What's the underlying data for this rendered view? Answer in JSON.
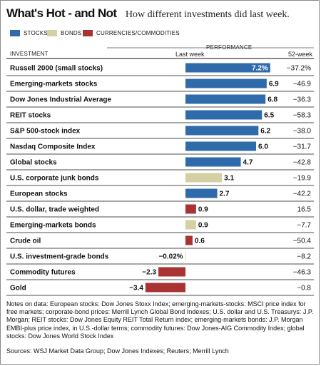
{
  "header": {
    "title": "What's Hot - and Not",
    "subtitle": "How different investments did last week."
  },
  "legend": [
    {
      "key": "stocks",
      "label": "STOCKS",
      "color": "#2f6bab"
    },
    {
      "key": "bonds",
      "label": "BONDS",
      "color": "#d4d0a4"
    },
    {
      "key": "currencies",
      "label": "CURRENCIES/COMMODITIES",
      "color": "#a93233"
    }
  ],
  "table_header": {
    "investment": "INVESTMENT",
    "performance": "PERFORMANCE",
    "last_week": "Last week",
    "week52": "52-week"
  },
  "chart_data": {
    "type": "bar",
    "orientation": "horizontal",
    "series_name": "Last week",
    "categories": [
      "Russell 2000 (small stocks)",
      "Emerging-markets stocks",
      "Dow Jones Industrial Average",
      "REIT stocks",
      "S&P 500-stock index",
      "Nasdaq Composite Index",
      "Global stocks",
      "U.S. corporate junk bonds",
      "European stocks",
      "U.S. dollar, trade weighted",
      "Emerging-markets bonds",
      "Crude oil",
      "U.S. investment-grade bonds",
      "Commodity futures",
      "Gold"
    ],
    "values": [
      7.2,
      6.9,
      6.8,
      6.5,
      6.2,
      6.0,
      4.7,
      3.1,
      2.7,
      0.9,
      0.9,
      0.6,
      -0.02,
      -2.3,
      -3.4
    ],
    "value_labels": [
      "7.2%",
      "6.9",
      "6.8",
      "6.5",
      "6.2",
      "6.0",
      "4.7",
      "3.1",
      "2.7",
      "0.9",
      "0.9",
      "0.6",
      "−0.02%",
      "−2.3",
      "−3.4"
    ],
    "groups": [
      "stocks",
      "stocks",
      "stocks",
      "stocks",
      "stocks",
      "stocks",
      "stocks",
      "bonds",
      "stocks",
      "currencies",
      "bonds",
      "currencies",
      "bonds",
      "currencies",
      "currencies"
    ],
    "week52": [
      "−37.2%",
      "−46.9",
      "−36.3",
      "−58.3",
      "−38.0",
      "−31.7",
      "−42.8",
      "−19.9",
      "−42.2",
      "16.5",
      "−7.7",
      "−50.4",
      "−8.2",
      "−46.3",
      "−0.8"
    ]
  },
  "notes": "Notes on data: European stocks: Dow Jones Stoxx Index; emerging-markets-stocks: MSCI price index for free markets; corporate-bond prices: Merrill Lynch Global Bond Indexes; U.S. dollar and U.S. Treasurys: J.P. Morgan; REIT stocks: Dow Jones Equity REIT Total Return index; emerging-markets bonds: J.P. Morgan EMBI-plus price index, in U.S.-dollar terms; commodity futures: Dow Jones-AIG Commodity Index; global stocks: Dow Jones World Stock Index",
  "sources": "Sources: WSJ Market Data Group; Dow Jones Indexes; Reuters; Merrill Lynch"
}
